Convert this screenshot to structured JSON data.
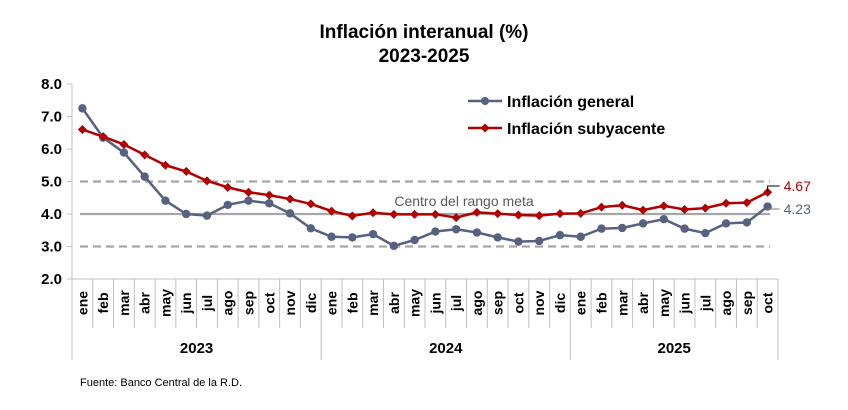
{
  "chart_data": {
    "type": "line",
    "title": "Inflación interanual (%)",
    "subtitle": "2023-2025",
    "xlabel": "",
    "ylabel": "",
    "ylim": [
      2.0,
      8.0
    ],
    "yticks": [
      "2.0",
      "3.0",
      "4.0",
      "5.0",
      "6.0",
      "7.0",
      "8.0"
    ],
    "ytick_values": [
      2,
      3,
      4,
      5,
      6,
      7,
      8
    ],
    "grid": false,
    "legend_position": "top-right",
    "categories": [
      "ene",
      "feb",
      "mar",
      "abr",
      "may",
      "jun",
      "jul",
      "ago",
      "sep",
      "oct",
      "nov",
      "dic",
      "ene",
      "feb",
      "mar",
      "abr",
      "may",
      "jun",
      "jul",
      "ago",
      "sep",
      "oct",
      "nov",
      "dic",
      "ene",
      "feb",
      "mar",
      "abr",
      "may",
      "jun",
      "jul",
      "ago",
      "sep",
      "oct"
    ],
    "year_groups": [
      {
        "label": "2023",
        "count": 12
      },
      {
        "label": "2024",
        "count": 12
      },
      {
        "label": "2025",
        "count": 10
      }
    ],
    "series": [
      {
        "name": "Inflación general",
        "color": "#56627f",
        "marker": "circle",
        "values": [
          7.25,
          6.35,
          5.89,
          5.15,
          4.41,
          4.0,
          3.95,
          4.28,
          4.41,
          4.33,
          4.02,
          3.56,
          3.3,
          3.28,
          3.38,
          3.02,
          3.2,
          3.46,
          3.53,
          3.43,
          3.28,
          3.15,
          3.17,
          3.35,
          3.3,
          3.55,
          3.57,
          3.71,
          3.84,
          3.55,
          3.41,
          3.71,
          3.74,
          4.23
        ],
        "end_label": "4.23"
      },
      {
        "name": "Inflación subyacente",
        "color": "#b20000",
        "marker": "diamond",
        "values": [
          6.6,
          6.38,
          6.14,
          5.82,
          5.5,
          5.31,
          5.02,
          4.82,
          4.67,
          4.58,
          4.46,
          4.31,
          4.09,
          3.94,
          4.04,
          3.99,
          3.99,
          3.99,
          3.89,
          4.05,
          4.01,
          3.97,
          3.95,
          4.01,
          4.02,
          4.21,
          4.27,
          4.12,
          4.25,
          4.14,
          4.18,
          4.33,
          4.35,
          4.67
        ],
        "end_label": "4.67"
      }
    ],
    "reference_lines": [
      {
        "value": 5.0,
        "style": "dashed",
        "color": "#a6a6a6"
      },
      {
        "value": 4.0,
        "style": "solid",
        "color": "#a6a6a6",
        "label": "Centro del rango meta"
      },
      {
        "value": 3.0,
        "style": "dashed",
        "color": "#a6a6a6"
      }
    ],
    "source": "Fuente: Banco Central de la R.D."
  }
}
